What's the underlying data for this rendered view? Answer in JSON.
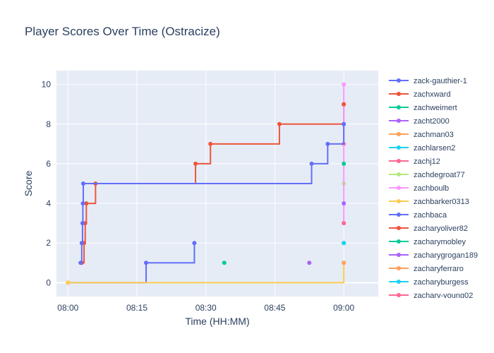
{
  "chart_data": {
    "type": "line",
    "line_shape": "step",
    "title": "Player Scores Over Time (Ostracize)",
    "xlabel": "Time (HH:MM)",
    "ylabel": "Score",
    "x_ticks": [
      "08:00",
      "08:15",
      "08:30",
      "08:45",
      "09:00"
    ],
    "y_ticks": [
      0,
      2,
      4,
      6,
      8,
      10
    ],
    "xlim": [
      "07:57:30",
      "09:07:30"
    ],
    "ylim": [
      -0.7,
      10.7
    ],
    "grid": true,
    "legend": "right",
    "plot_bg": "#e5ecf6",
    "series": [
      {
        "name": "zack-gauthier-1",
        "color": "#636efa",
        "points": [
          [
            "08:00:00",
            0
          ],
          [
            "08:17:00",
            1
          ],
          [
            "08:27:30",
            2
          ]
        ]
      },
      {
        "name": "zachxward",
        "color": "#ef553b",
        "points": [
          [
            "08:03:00",
            1
          ],
          [
            "08:03:30",
            2
          ],
          [
            "08:03:45",
            3
          ],
          [
            "08:04:00",
            4
          ],
          [
            "08:06:00",
            5
          ],
          [
            "08:27:45",
            6
          ],
          [
            "08:31:00",
            7
          ],
          [
            "08:46:00",
            8
          ],
          [
            "09:00:00",
            9
          ]
        ]
      },
      {
        "name": "zachweimert",
        "color": "#00cc96",
        "points": [
          [
            "08:34:00",
            1
          ]
        ]
      },
      {
        "name": "zacht2000",
        "color": "#ab63fa",
        "points": [
          [
            "08:52:30",
            1
          ]
        ]
      },
      {
        "name": "zachman03",
        "color": "#ffa15a",
        "points": [
          [
            "08:00:00",
            0
          ]
        ]
      },
      {
        "name": "zachlarsen2",
        "color": "#19d3f3",
        "points": [
          [
            "09:00:00",
            2
          ]
        ]
      },
      {
        "name": "zachj12",
        "color": "#ff6692",
        "points": [
          [
            "09:00:00",
            7
          ]
        ]
      },
      {
        "name": "zachdegroat77",
        "color": "#b6e880",
        "points": [
          [
            "09:00:00",
            5
          ]
        ]
      },
      {
        "name": "zachboulb",
        "color": "#ff97ff",
        "points": [
          [
            "09:00:00",
            3
          ],
          [
            "09:00:00",
            10
          ]
        ]
      },
      {
        "name": "zachbarker0313",
        "color": "#fecb52",
        "points": [
          [
            "08:00:00",
            0
          ],
          [
            "09:00:00",
            1
          ]
        ]
      },
      {
        "name": "zachbaca",
        "color": "#636efa",
        "points": [
          [
            "08:02:45",
            1
          ],
          [
            "08:03:00",
            2
          ],
          [
            "08:03:10",
            3
          ],
          [
            "08:03:15",
            4
          ],
          [
            "08:03:20",
            5
          ],
          [
            "08:53:00",
            6
          ],
          [
            "08:56:30",
            7
          ],
          [
            "09:00:00",
            8
          ]
        ]
      },
      {
        "name": "zacharyoliver82",
        "color": "#ef553b",
        "points": [
          [
            "09:00:00",
            9
          ]
        ]
      },
      {
        "name": "zacharymobley",
        "color": "#00cc96",
        "points": [
          [
            "09:00:00",
            6
          ]
        ]
      },
      {
        "name": "zacharygrogan189",
        "color": "#ab63fa",
        "points": [
          [
            "09:00:00",
            4
          ]
        ]
      },
      {
        "name": "zacharyferraro",
        "color": "#ffa15a",
        "points": [
          [
            "09:00:00",
            1
          ]
        ]
      },
      {
        "name": "zacharyburgess",
        "color": "#19d3f3",
        "points": [
          [
            "09:00:00",
            2
          ]
        ]
      },
      {
        "name": "zachary-young02",
        "color": "#ff6692",
        "points": [
          [
            "09:00:00",
            3
          ]
        ]
      }
    ]
  }
}
